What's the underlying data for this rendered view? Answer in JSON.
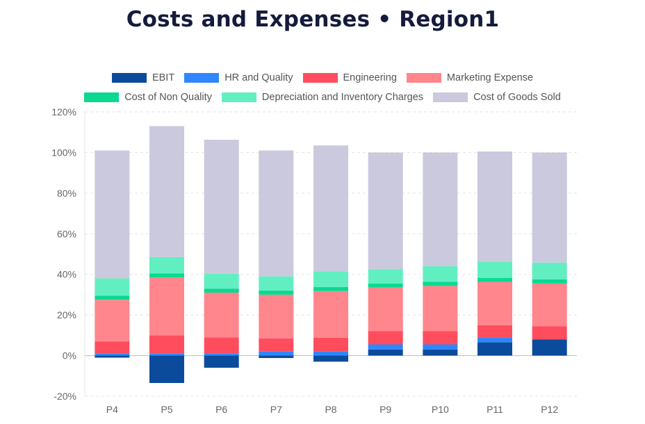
{
  "title": "Costs and Expenses • Region1",
  "chart_data": {
    "type": "bar",
    "stacked": true,
    "categories": [
      "P4",
      "P5",
      "P6",
      "P7",
      "P8",
      "P9",
      "P10",
      "P11",
      "P12"
    ],
    "ylim": [
      -20,
      120
    ],
    "yticks": [
      -20,
      0,
      20,
      40,
      60,
      80,
      100,
      120
    ],
    "ytick_labels": [
      "-20%",
      "0%",
      "20%",
      "40%",
      "60%",
      "80%",
      "100%",
      "120%"
    ],
    "grid": true,
    "legend_position": "top",
    "series": [
      {
        "name": "EBIT",
        "color": "#0b4b9c",
        "values": [
          -1,
          -13.5,
          -6,
          -1.2,
          -3,
          3,
          3,
          6.5,
          8
        ]
      },
      {
        "name": "HR and Quality",
        "color": "#2f86ff",
        "values": [
          1,
          1,
          1,
          2,
          2,
          2.5,
          2.5,
          2.5,
          0
        ]
      },
      {
        "name": "Engineering",
        "color": "#ff4d5e",
        "values": [
          6,
          9,
          8,
          6.5,
          6.8,
          6.5,
          6.5,
          6,
          6.5
        ]
      },
      {
        "name": "Marketing Expense",
        "color": "#ff868c",
        "values": [
          20.5,
          28.5,
          22,
          21.5,
          23,
          21.5,
          22.3,
          21.3,
          21
        ]
      },
      {
        "name": "Cost of Non Quality",
        "color": "#0bd990",
        "values": [
          2,
          2,
          2,
          2,
          2,
          2,
          2,
          2,
          2
        ]
      },
      {
        "name": "Depreciation and Inventory Charges",
        "color": "#61efc1",
        "values": [
          8.5,
          8,
          7.3,
          7,
          7.7,
          7,
          7.7,
          8,
          8.3
        ]
      },
      {
        "name": "Cost of Goods Sold",
        "color": "#cbc9dd",
        "values": [
          63,
          64.5,
          66,
          62,
          62,
          57.5,
          56,
          54.2,
          54.2
        ]
      }
    ]
  }
}
